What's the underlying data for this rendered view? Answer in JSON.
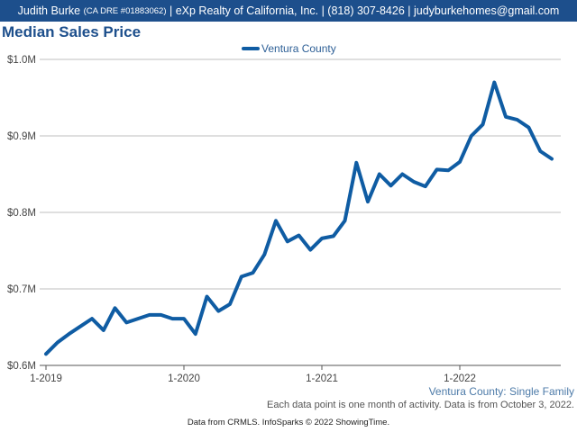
{
  "header": {
    "name": "Judith Burke",
    "license": "(CA DRE #01883062)",
    "details": "| eXp Realty of California, Inc. | (818) 307-8426 | judyburkehomes@gmail.com"
  },
  "colors": {
    "header_background": "#1d4f8c",
    "title": "#1d4f8c",
    "series_line": "#0f5ca3",
    "gridline": "#bfbfbf"
  },
  "chart_data": {
    "type": "line",
    "title": "Median Sales Price",
    "xlabel": "",
    "ylabel": "",
    "ylim": [
      600000,
      1000000
    ],
    "y_ticks": [
      {
        "value": 600000,
        "label": "$0.6M"
      },
      {
        "value": 700000,
        "label": "$0.7M"
      },
      {
        "value": 800000,
        "label": "$0.8M"
      },
      {
        "value": 900000,
        "label": "$0.9M"
      },
      {
        "value": 1000000,
        "label": "$1.0M"
      }
    ],
    "x_ticks": [
      {
        "value": "2019-01",
        "label": "1-2019"
      },
      {
        "value": "2020-01",
        "label": "1-2020"
      },
      {
        "value": "2021-01",
        "label": "1-2021"
      },
      {
        "value": "2022-01",
        "label": "1-2022"
      }
    ],
    "grid": true,
    "legend": "top-center",
    "x": [
      "2019-01",
      "2019-02",
      "2019-03",
      "2019-04",
      "2019-05",
      "2019-06",
      "2019-07",
      "2019-08",
      "2019-09",
      "2019-10",
      "2019-11",
      "2019-12",
      "2020-01",
      "2020-02",
      "2020-03",
      "2020-04",
      "2020-05",
      "2020-06",
      "2020-07",
      "2020-08",
      "2020-09",
      "2020-10",
      "2020-11",
      "2020-12",
      "2021-01",
      "2021-02",
      "2021-03",
      "2021-04",
      "2021-05",
      "2021-06",
      "2021-07",
      "2021-08",
      "2021-09",
      "2021-10",
      "2021-11",
      "2021-12",
      "2022-01",
      "2022-02",
      "2022-03",
      "2022-04",
      "2022-05",
      "2022-06",
      "2022-07",
      "2022-08",
      "2022-09"
    ],
    "series": [
      {
        "name": "Ventura County",
        "values": [
          615000,
          630000,
          641000,
          651000,
          661000,
          646000,
          675000,
          656000,
          661000,
          666000,
          666000,
          661000,
          661000,
          641000,
          690000,
          671000,
          680000,
          716000,
          721000,
          745000,
          789000,
          762000,
          770000,
          751000,
          766000,
          769000,
          789000,
          865000,
          814000,
          850000,
          835000,
          850000,
          840000,
          834000,
          856000,
          855000,
          866000,
          900000,
          915000,
          970000,
          925000,
          921000,
          911000,
          880000,
          870000
        ]
      }
    ]
  },
  "captions": {
    "series_label": "Ventura County: Single Family",
    "note": "Each data point is one month of activity. Data is from October 3, 2022."
  },
  "footer": "Data from CRMLS. InfoSparks © 2022 ShowingTime."
}
